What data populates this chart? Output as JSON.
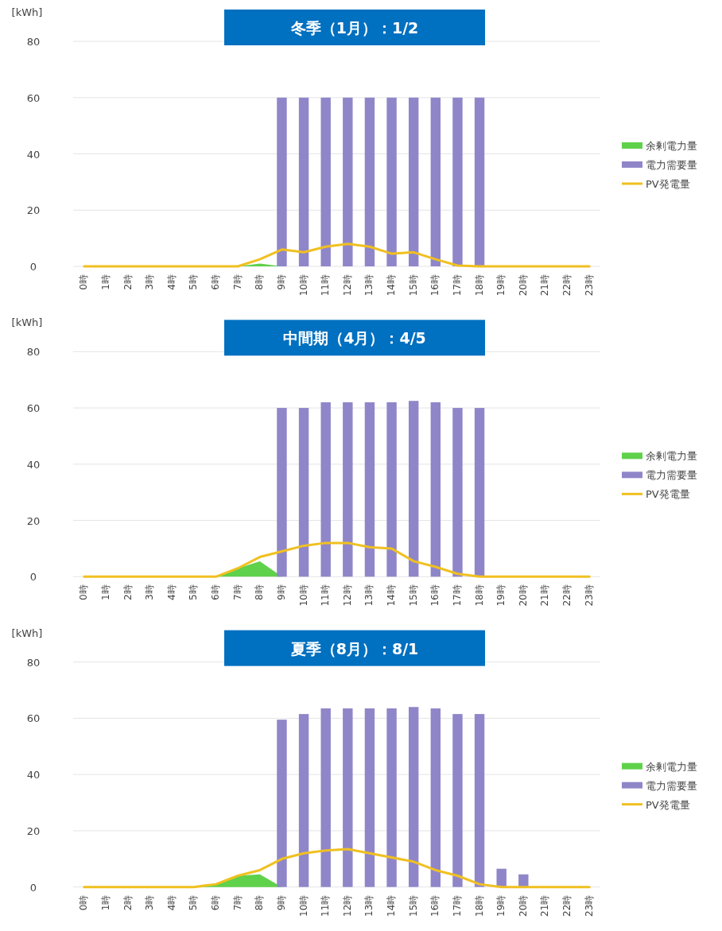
{
  "chart_data": [
    {
      "type": "bar",
      "title": "冬季（1月）：1/2",
      "ylabel": "[kWh]",
      "categories": [
        "0時",
        "1時",
        "2時",
        "3時",
        "4時",
        "5時",
        "6時",
        "7時",
        "8時",
        "9時",
        "10時",
        "11時",
        "12時",
        "13時",
        "14時",
        "15時",
        "16時",
        "17時",
        "18時",
        "19時",
        "20時",
        "21時",
        "22時",
        "23時"
      ],
      "ylim": [
        0,
        80
      ],
      "yticks": [
        0,
        20,
        40,
        60,
        80
      ],
      "grid": "y",
      "legend": "right",
      "series": [
        {
          "name": "余剰電力量",
          "type": "area",
          "color": "#5fd14a",
          "values": [
            0,
            0,
            0,
            0,
            0,
            0,
            0,
            0,
            1,
            0,
            0,
            0,
            0,
            0,
            0,
            0,
            0,
            0,
            0,
            0,
            0,
            0,
            0,
            0
          ]
        },
        {
          "name": "電力需要量",
          "type": "bar",
          "color": "#8f86c9",
          "values": [
            0,
            0,
            0,
            0,
            0,
            0,
            0,
            0,
            0,
            60,
            60,
            60,
            60,
            60,
            60,
            60,
            60,
            60,
            60,
            0,
            0,
            0,
            0,
            0
          ]
        },
        {
          "name": "PV発電量",
          "type": "line",
          "color": "#f0c020",
          "values": [
            0,
            0,
            0,
            0,
            0,
            0,
            0,
            0,
            2.5,
            6,
            5,
            7,
            8,
            7,
            4.5,
            5,
            2.5,
            0.3,
            0,
            0,
            0,
            0,
            0,
            0
          ]
        }
      ]
    },
    {
      "type": "bar",
      "title": "中間期（4月）：4/5",
      "ylabel": "[kWh]",
      "categories": [
        "0時",
        "1時",
        "2時",
        "3時",
        "4時",
        "5時",
        "6時",
        "7時",
        "8時",
        "9時",
        "10時",
        "11時",
        "12時",
        "13時",
        "14時",
        "15時",
        "16時",
        "17時",
        "18時",
        "19時",
        "20時",
        "21時",
        "22時",
        "23時"
      ],
      "ylim": [
        0,
        80
      ],
      "yticks": [
        0,
        20,
        40,
        60,
        80
      ],
      "grid": "y",
      "legend": "right",
      "series": [
        {
          "name": "余剰電力量",
          "type": "area",
          "color": "#5fd14a",
          "values": [
            0,
            0,
            0,
            0,
            0,
            0,
            0,
            3,
            5.5,
            0,
            0,
            0,
            0,
            0,
            0,
            0,
            0,
            0,
            0,
            0,
            0,
            0,
            0,
            0
          ]
        },
        {
          "name": "電力需要量",
          "type": "bar",
          "color": "#8f86c9",
          "values": [
            0,
            0,
            0,
            0,
            0,
            0,
            0,
            0,
            0,
            60,
            60,
            62,
            62,
            62,
            62,
            62.5,
            62,
            60,
            60,
            0,
            0,
            0,
            0,
            0
          ]
        },
        {
          "name": "PV発電量",
          "type": "line",
          "color": "#f0c020",
          "values": [
            0,
            0,
            0,
            0,
            0,
            0,
            0,
            3,
            7,
            9,
            11,
            12,
            12,
            10.5,
            10,
            5.5,
            3.5,
            1,
            0,
            0,
            0,
            0,
            0,
            0
          ]
        }
      ]
    },
    {
      "type": "bar",
      "title": "夏季（8月）：8/1",
      "ylabel": "[kWh]",
      "categories": [
        "0時",
        "1時",
        "2時",
        "3時",
        "4時",
        "5時",
        "6時",
        "7時",
        "8時",
        "9時",
        "10時",
        "11時",
        "12時",
        "13時",
        "14時",
        "15時",
        "16時",
        "17時",
        "18時",
        "19時",
        "20時",
        "21時",
        "22時",
        "23時"
      ],
      "ylim": [
        0,
        80
      ],
      "yticks": [
        0,
        20,
        40,
        60,
        80
      ],
      "grid": "y",
      "legend": "right",
      "series": [
        {
          "name": "余剰電力量",
          "type": "area",
          "color": "#5fd14a",
          "values": [
            0,
            0,
            0,
            0,
            0,
            0,
            1,
            4,
            4.5,
            0,
            0,
            0,
            0,
            0,
            0,
            0,
            0,
            0,
            0,
            0,
            0,
            0,
            0,
            0
          ]
        },
        {
          "name": "電力需要量",
          "type": "bar",
          "color": "#8f86c9",
          "values": [
            0,
            0,
            0,
            0,
            0,
            0,
            0,
            0,
            0,
            59.5,
            61.5,
            63.5,
            63.5,
            63.5,
            63.5,
            64,
            63.5,
            61.5,
            61.5,
            6.5,
            4.5,
            0,
            0,
            0
          ]
        },
        {
          "name": "PV発電量",
          "type": "line",
          "color": "#f0c020",
          "values": [
            0,
            0,
            0,
            0,
            0,
            0,
            1,
            4,
            6,
            10,
            12,
            13,
            13.5,
            12,
            10.5,
            9,
            6,
            4,
            1,
            0,
            0,
            0,
            0,
            0
          ]
        }
      ]
    }
  ]
}
